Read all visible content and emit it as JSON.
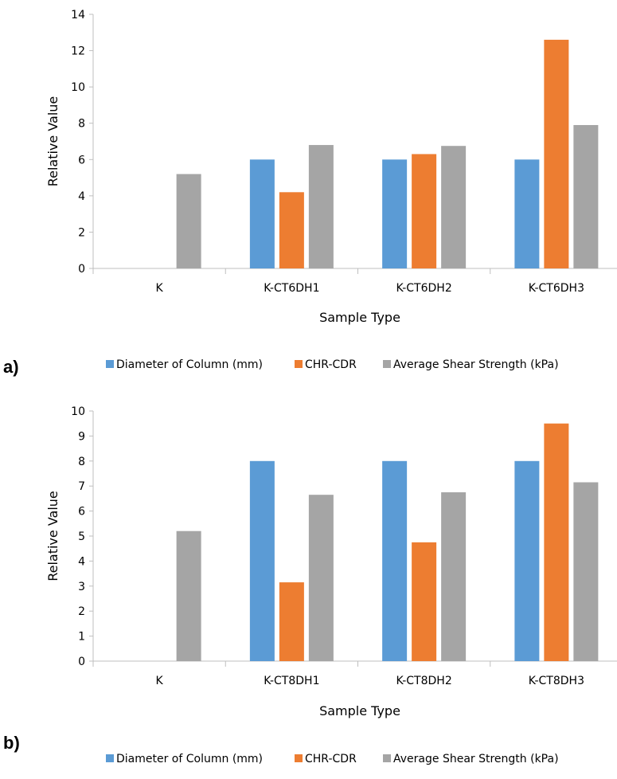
{
  "panels": [
    {
      "label": "a)"
    },
    {
      "label": "b)"
    }
  ],
  "chart_data": [
    {
      "type": "bar",
      "categories": [
        "K",
        "K-CT6DH1",
        "K-CT6DH2",
        "K-CT6DH3"
      ],
      "series": [
        {
          "name": "Diameter of Column (mm)",
          "color": "#5b9bd5",
          "values": [
            0,
            6,
            6,
            6
          ]
        },
        {
          "name": "CHR-CDR",
          "color": "#ed7d31",
          "values": [
            0,
            4.2,
            6.3,
            12.6
          ]
        },
        {
          "name": "Average Shear Strength (kPa)",
          "color": "#a5a5a5",
          "values": [
            5.2,
            6.8,
            6.75,
            7.9
          ]
        }
      ],
      "xlabel": "Sample Type",
      "ylabel": "Relative Value",
      "ylim": [
        0,
        14
      ],
      "yticks": [
        "0",
        "2",
        "4",
        "6",
        "8",
        "10",
        "12",
        "14"
      ],
      "grid": false,
      "legend": "bottom"
    },
    {
      "type": "bar",
      "categories": [
        "K",
        "K-CT8DH1",
        "K-CT8DH2",
        "K-CT8DH3"
      ],
      "series": [
        {
          "name": "Diameter of Column (mm)",
          "color": "#5b9bd5",
          "values": [
            0,
            8,
            8,
            8
          ]
        },
        {
          "name": "CHR-CDR",
          "color": "#ed7d31",
          "values": [
            0,
            3.15,
            4.75,
            9.5
          ]
        },
        {
          "name": "Average Shear Strength (kPa)",
          "color": "#a5a5a5",
          "values": [
            5.2,
            6.65,
            6.75,
            7.15
          ]
        }
      ],
      "xlabel": "Sample Type",
      "ylabel": "Relative Value",
      "ylim": [
        0,
        10
      ],
      "yticks": [
        "0",
        "1",
        "2",
        "3",
        "4",
        "5",
        "6",
        "7",
        "8",
        "9",
        "10"
      ],
      "grid": false,
      "legend": "bottom"
    }
  ]
}
